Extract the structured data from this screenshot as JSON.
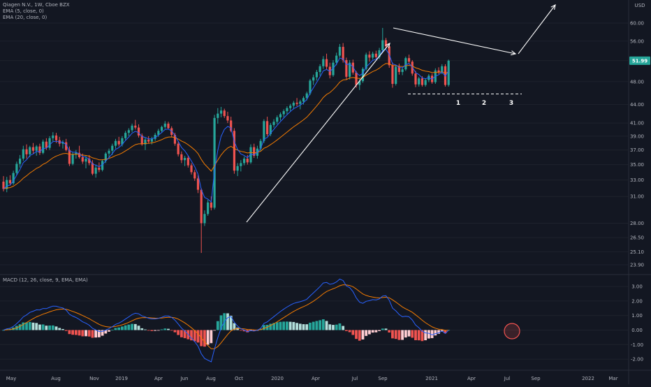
{
  "chart_data": {
    "type": "candlestick",
    "title": "Qiagen N.V., 1W, Cboe BZX",
    "price_axis": {
      "unit_label": "USD",
      "scale": "log",
      "ticks": [
        "60.00",
        "56.00",
        "52.00",
        "48.00",
        "44.00",
        "41.00",
        "39.00",
        "37.00",
        "35.00",
        "33.00",
        "31.00",
        "28.00",
        "26.50",
        "25.10",
        "23.90"
      ],
      "last_price_label": "51.99",
      "last_price": 51.99
    },
    "time_axis": {
      "labels": [
        "May",
        "Aug",
        "Nov",
        "2019",
        "Apr",
        "Jun",
        "Aug",
        "Oct",
        "2020",
        "Apr",
        "Jul",
        "Sep",
        "2021",
        "Apr",
        "Jul",
        "Sep",
        "2022",
        "Mar"
      ]
    },
    "indicators": [
      {
        "name": "EMA (5, close, 0)",
        "color": "#2962ff"
      },
      {
        "name": "EMA (20, close, 0)",
        "color": "#f57c00"
      }
    ],
    "candles": [
      {
        "o": 32.8,
        "h": 33.5,
        "l": 31.6,
        "c": 31.9
      },
      {
        "o": 31.9,
        "h": 33.4,
        "l": 31.5,
        "c": 33.0
      },
      {
        "o": 33.0,
        "h": 33.6,
        "l": 32.3,
        "c": 32.6
      },
      {
        "o": 32.6,
        "h": 34.2,
        "l": 32.4,
        "c": 33.9
      },
      {
        "o": 33.9,
        "h": 35.4,
        "l": 33.6,
        "c": 35.1
      },
      {
        "o": 35.1,
        "h": 36.3,
        "l": 34.6,
        "c": 35.8
      },
      {
        "o": 35.8,
        "h": 37.6,
        "l": 35.5,
        "c": 37.1
      },
      {
        "o": 37.1,
        "h": 37.8,
        "l": 35.8,
        "c": 36.4
      },
      {
        "o": 36.4,
        "h": 37.6,
        "l": 36.0,
        "c": 37.4
      },
      {
        "o": 37.4,
        "h": 38.0,
        "l": 36.5,
        "c": 36.9
      },
      {
        "o": 36.9,
        "h": 37.7,
        "l": 36.2,
        "c": 37.5
      },
      {
        "o": 37.5,
        "h": 37.9,
        "l": 36.3,
        "c": 36.6
      },
      {
        "o": 36.6,
        "h": 38.5,
        "l": 36.4,
        "c": 38.2
      },
      {
        "o": 38.2,
        "h": 38.7,
        "l": 37.0,
        "c": 37.3
      },
      {
        "o": 37.3,
        "h": 39.0,
        "l": 37.0,
        "c": 38.7
      },
      {
        "o": 38.7,
        "h": 39.6,
        "l": 38.2,
        "c": 39.1
      },
      {
        "o": 39.1,
        "h": 39.5,
        "l": 38.0,
        "c": 38.4
      },
      {
        "o": 38.4,
        "h": 38.9,
        "l": 37.5,
        "c": 37.9
      },
      {
        "o": 37.9,
        "h": 38.4,
        "l": 37.2,
        "c": 38.1
      },
      {
        "o": 38.1,
        "h": 38.6,
        "l": 36.8,
        "c": 37.0
      },
      {
        "o": 37.0,
        "h": 37.5,
        "l": 34.8,
        "c": 35.1
      },
      {
        "o": 35.1,
        "h": 36.7,
        "l": 34.9,
        "c": 36.4
      },
      {
        "o": 36.4,
        "h": 37.0,
        "l": 35.8,
        "c": 36.6
      },
      {
        "o": 36.6,
        "h": 37.6,
        "l": 35.8,
        "c": 36.0
      },
      {
        "o": 36.0,
        "h": 36.5,
        "l": 35.1,
        "c": 35.4
      },
      {
        "o": 35.4,
        "h": 36.2,
        "l": 34.5,
        "c": 35.8
      },
      {
        "o": 35.8,
        "h": 36.3,
        "l": 34.9,
        "c": 35.2
      },
      {
        "o": 35.2,
        "h": 35.6,
        "l": 33.6,
        "c": 33.8
      },
      {
        "o": 33.8,
        "h": 35.0,
        "l": 33.3,
        "c": 34.6
      },
      {
        "o": 34.6,
        "h": 35.3,
        "l": 34.0,
        "c": 34.3
      },
      {
        "o": 34.3,
        "h": 35.7,
        "l": 34.1,
        "c": 35.5
      },
      {
        "o": 35.5,
        "h": 36.7,
        "l": 35.2,
        "c": 36.5
      },
      {
        "o": 36.5,
        "h": 37.2,
        "l": 35.9,
        "c": 36.9
      },
      {
        "o": 36.9,
        "h": 37.9,
        "l": 36.3,
        "c": 37.6
      },
      {
        "o": 37.6,
        "h": 38.6,
        "l": 37.2,
        "c": 38.3
      },
      {
        "o": 38.3,
        "h": 38.9,
        "l": 37.5,
        "c": 37.8
      },
      {
        "o": 37.8,
        "h": 39.0,
        "l": 37.5,
        "c": 38.7
      },
      {
        "o": 38.7,
        "h": 39.8,
        "l": 38.4,
        "c": 39.5
      },
      {
        "o": 39.5,
        "h": 40.2,
        "l": 39.0,
        "c": 39.9
      },
      {
        "o": 39.9,
        "h": 40.9,
        "l": 39.6,
        "c": 40.6
      },
      {
        "o": 40.6,
        "h": 41.5,
        "l": 40.0,
        "c": 40.3
      },
      {
        "o": 40.3,
        "h": 40.8,
        "l": 38.8,
        "c": 39.1
      },
      {
        "o": 39.1,
        "h": 39.4,
        "l": 37.6,
        "c": 37.8
      },
      {
        "o": 37.8,
        "h": 38.8,
        "l": 37.0,
        "c": 38.5
      },
      {
        "o": 38.5,
        "h": 39.0,
        "l": 37.9,
        "c": 38.2
      },
      {
        "o": 38.2,
        "h": 38.9,
        "l": 37.8,
        "c": 38.6
      },
      {
        "o": 38.6,
        "h": 39.5,
        "l": 38.3,
        "c": 39.2
      },
      {
        "o": 39.2,
        "h": 40.1,
        "l": 38.9,
        "c": 39.8
      },
      {
        "o": 39.8,
        "h": 40.6,
        "l": 39.5,
        "c": 40.4
      },
      {
        "o": 40.4,
        "h": 41.3,
        "l": 40.1,
        "c": 40.9
      },
      {
        "o": 40.9,
        "h": 41.2,
        "l": 40.0,
        "c": 40.2
      },
      {
        "o": 40.2,
        "h": 40.5,
        "l": 38.9,
        "c": 39.2
      },
      {
        "o": 39.2,
        "h": 39.5,
        "l": 37.6,
        "c": 37.9
      },
      {
        "o": 37.9,
        "h": 38.2,
        "l": 36.1,
        "c": 36.4
      },
      {
        "o": 36.4,
        "h": 36.8,
        "l": 35.2,
        "c": 35.6
      },
      {
        "o": 35.6,
        "h": 36.2,
        "l": 34.8,
        "c": 35.9
      },
      {
        "o": 35.9,
        "h": 36.2,
        "l": 34.6,
        "c": 34.9
      },
      {
        "o": 34.9,
        "h": 35.2,
        "l": 33.7,
        "c": 34.0
      },
      {
        "o": 34.0,
        "h": 34.3,
        "l": 32.9,
        "c": 33.2
      },
      {
        "o": 33.2,
        "h": 33.6,
        "l": 31.4,
        "c": 31.8
      },
      {
        "o": 31.8,
        "h": 32.0,
        "l": 25.0,
        "c": 28.0
      },
      {
        "o": 28.0,
        "h": 29.4,
        "l": 27.7,
        "c": 29.0
      },
      {
        "o": 29.0,
        "h": 30.6,
        "l": 28.8,
        "c": 30.3
      },
      {
        "o": 30.3,
        "h": 31.0,
        "l": 29.4,
        "c": 29.7
      },
      {
        "o": 29.7,
        "h": 42.3,
        "l": 29.5,
        "c": 41.8
      },
      {
        "o": 41.8,
        "h": 43.4,
        "l": 40.9,
        "c": 42.5
      },
      {
        "o": 42.5,
        "h": 43.6,
        "l": 41.9,
        "c": 43.0
      },
      {
        "o": 43.0,
        "h": 43.3,
        "l": 41.8,
        "c": 42.1
      },
      {
        "o": 42.1,
        "h": 42.8,
        "l": 41.0,
        "c": 41.4
      },
      {
        "o": 41.4,
        "h": 42.0,
        "l": 39.6,
        "c": 39.8
      },
      {
        "o": 39.8,
        "h": 40.2,
        "l": 33.8,
        "c": 34.2
      },
      {
        "o": 34.2,
        "h": 35.2,
        "l": 33.5,
        "c": 34.8
      },
      {
        "o": 34.8,
        "h": 35.6,
        "l": 34.1,
        "c": 35.2
      },
      {
        "o": 35.2,
        "h": 36.1,
        "l": 34.9,
        "c": 35.8
      },
      {
        "o": 35.8,
        "h": 36.3,
        "l": 35.0,
        "c": 35.3
      },
      {
        "o": 35.3,
        "h": 37.8,
        "l": 35.1,
        "c": 37.4
      },
      {
        "o": 37.4,
        "h": 37.9,
        "l": 35.9,
        "c": 36.2
      },
      {
        "o": 36.2,
        "h": 37.6,
        "l": 35.8,
        "c": 37.2
      },
      {
        "o": 37.2,
        "h": 38.6,
        "l": 36.9,
        "c": 38.3
      },
      {
        "o": 38.3,
        "h": 41.6,
        "l": 38.0,
        "c": 41.3
      },
      {
        "o": 41.3,
        "h": 42.0,
        "l": 39.0,
        "c": 39.3
      },
      {
        "o": 39.3,
        "h": 41.0,
        "l": 39.0,
        "c": 40.7
      },
      {
        "o": 40.7,
        "h": 41.6,
        "l": 40.3,
        "c": 41.2
      },
      {
        "o": 41.2,
        "h": 42.2,
        "l": 40.8,
        "c": 41.9
      },
      {
        "o": 41.9,
        "h": 42.7,
        "l": 41.4,
        "c": 42.4
      },
      {
        "o": 42.4,
        "h": 43.2,
        "l": 41.9,
        "c": 42.9
      },
      {
        "o": 42.9,
        "h": 43.7,
        "l": 42.4,
        "c": 43.4
      },
      {
        "o": 43.4,
        "h": 44.1,
        "l": 42.9,
        "c": 43.8
      },
      {
        "o": 43.8,
        "h": 44.6,
        "l": 43.2,
        "c": 44.3
      },
      {
        "o": 44.3,
        "h": 45.1,
        "l": 43.7,
        "c": 44.1
      },
      {
        "o": 44.1,
        "h": 44.8,
        "l": 43.2,
        "c": 44.5
      },
      {
        "o": 44.5,
        "h": 45.4,
        "l": 44.0,
        "c": 45.1
      },
      {
        "o": 45.1,
        "h": 46.2,
        "l": 44.7,
        "c": 45.9
      },
      {
        "o": 45.9,
        "h": 48.5,
        "l": 45.6,
        "c": 48.2
      },
      {
        "o": 48.2,
        "h": 49.3,
        "l": 47.4,
        "c": 48.8
      },
      {
        "o": 48.8,
        "h": 50.2,
        "l": 48.2,
        "c": 49.8
      },
      {
        "o": 49.8,
        "h": 51.3,
        "l": 49.1,
        "c": 50.9
      },
      {
        "o": 50.9,
        "h": 52.9,
        "l": 50.4,
        "c": 52.3
      },
      {
        "o": 52.3,
        "h": 53.4,
        "l": 50.2,
        "c": 50.8
      },
      {
        "o": 50.8,
        "h": 51.6,
        "l": 48.6,
        "c": 49.2
      },
      {
        "o": 49.2,
        "h": 52.1,
        "l": 48.9,
        "c": 51.6
      },
      {
        "o": 51.6,
        "h": 53.6,
        "l": 51.1,
        "c": 53.0
      },
      {
        "o": 53.0,
        "h": 55.4,
        "l": 52.6,
        "c": 54.8
      },
      {
        "o": 54.8,
        "h": 55.6,
        "l": 51.6,
        "c": 52.1
      },
      {
        "o": 52.1,
        "h": 52.6,
        "l": 48.3,
        "c": 48.9
      },
      {
        "o": 48.9,
        "h": 52.1,
        "l": 48.4,
        "c": 51.6
      },
      {
        "o": 51.6,
        "h": 52.2,
        "l": 49.3,
        "c": 49.7
      },
      {
        "o": 49.7,
        "h": 50.0,
        "l": 46.9,
        "c": 47.4
      },
      {
        "o": 47.4,
        "h": 48.6,
        "l": 46.5,
        "c": 48.1
      },
      {
        "o": 48.1,
        "h": 50.7,
        "l": 47.8,
        "c": 50.4
      },
      {
        "o": 50.4,
        "h": 53.6,
        "l": 50.1,
        "c": 53.2
      },
      {
        "o": 53.2,
        "h": 53.9,
        "l": 51.8,
        "c": 52.6
      },
      {
        "o": 52.6,
        "h": 53.8,
        "l": 52.2,
        "c": 53.4
      },
      {
        "o": 53.4,
        "h": 54.0,
        "l": 52.4,
        "c": 52.7
      },
      {
        "o": 52.7,
        "h": 54.6,
        "l": 52.3,
        "c": 54.1
      },
      {
        "o": 54.1,
        "h": 58.9,
        "l": 53.8,
        "c": 56.2
      },
      {
        "o": 56.2,
        "h": 56.7,
        "l": 54.4,
        "c": 54.9
      },
      {
        "o": 54.9,
        "h": 55.2,
        "l": 50.6,
        "c": 51.1
      },
      {
        "o": 51.1,
        "h": 51.6,
        "l": 46.9,
        "c": 47.6
      },
      {
        "o": 47.6,
        "h": 51.2,
        "l": 47.3,
        "c": 50.8
      },
      {
        "o": 50.8,
        "h": 51.4,
        "l": 49.3,
        "c": 49.8
      },
      {
        "o": 49.8,
        "h": 50.7,
        "l": 49.2,
        "c": 50.3
      },
      {
        "o": 50.3,
        "h": 52.8,
        "l": 50.0,
        "c": 52.5
      },
      {
        "o": 52.5,
        "h": 53.2,
        "l": 51.4,
        "c": 51.8
      },
      {
        "o": 51.8,
        "h": 52.1,
        "l": 49.1,
        "c": 49.5
      },
      {
        "o": 49.5,
        "h": 50.0,
        "l": 47.0,
        "c": 47.5
      },
      {
        "o": 47.5,
        "h": 48.9,
        "l": 47.1,
        "c": 48.6
      },
      {
        "o": 48.6,
        "h": 49.0,
        "l": 47.1,
        "c": 47.4
      },
      {
        "o": 47.4,
        "h": 48.6,
        "l": 47.1,
        "c": 48.3
      },
      {
        "o": 48.3,
        "h": 49.4,
        "l": 47.9,
        "c": 49.1
      },
      {
        "o": 49.1,
        "h": 49.5,
        "l": 47.6,
        "c": 47.9
      },
      {
        "o": 47.9,
        "h": 50.5,
        "l": 47.6,
        "c": 50.1
      },
      {
        "o": 50.1,
        "h": 50.7,
        "l": 49.4,
        "c": 49.8
      },
      {
        "o": 49.8,
        "h": 51.3,
        "l": 49.4,
        "c": 50.9
      },
      {
        "o": 50.9,
        "h": 51.3,
        "l": 47.1,
        "c": 47.4
      },
      {
        "o": 47.4,
        "h": 52.2,
        "l": 47.1,
        "c": 51.99
      }
    ],
    "macd_panel": {
      "label": "MACD (12, 26, close, 9, EMA, EMA)",
      "ticks": [
        "3.00",
        "2.00",
        "1.00",
        "0.00",
        "-1.00",
        "-2.00"
      ],
      "ylim": [
        -2.4,
        3.4
      ]
    },
    "annotations": {
      "points": [
        "1",
        "2",
        "3"
      ]
    },
    "colors": {
      "background": "#131722",
      "up": "#26a69a",
      "down": "#ef5350",
      "ema_fast": "#2962ff",
      "ema_slow": "#f57c00",
      "macd_line": "#2962ff",
      "signal_line": "#f57c00",
      "grid": "#1e222d",
      "annotation": "#ffffff"
    }
  }
}
